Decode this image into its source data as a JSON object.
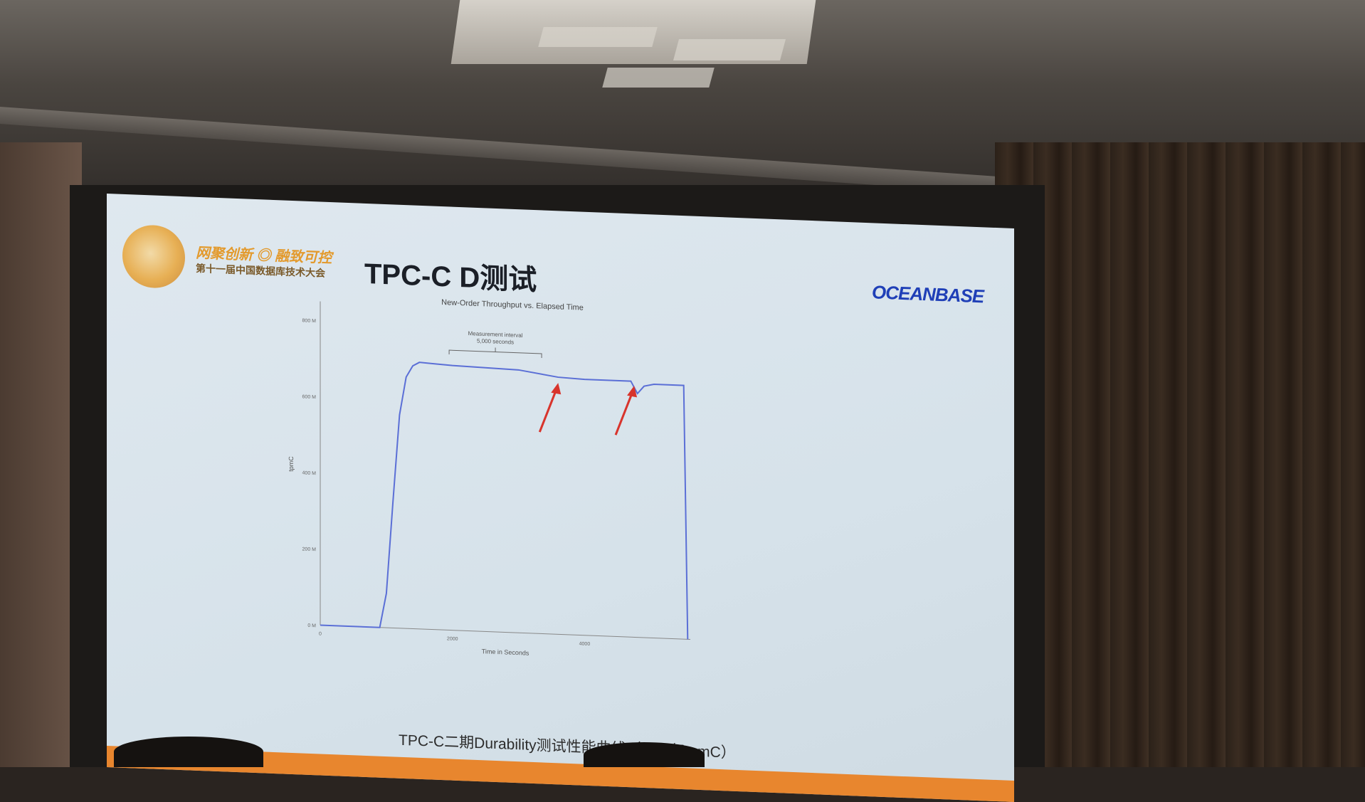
{
  "slide": {
    "logo_line1": "网聚创新 ◎ 融致可控",
    "logo_line2": "第十一届中国数据库技术大会",
    "title": "TPC-C D测试",
    "brand": "OCEANBASE",
    "caption": "TPC-C二期Durability测试性能曲线（7.07亿tpmC）"
  },
  "colors": {
    "line": "#5b6fd6",
    "arrow": "#d8342c",
    "brand": "#1f3fb7",
    "accent_bar": "#e8862e"
  },
  "chart_data": {
    "type": "line",
    "title": "New-Order Throughput vs. Elapsed Time",
    "xlabel": "Time in Seconds",
    "ylabel": "tpmC",
    "x_tick_labels": [
      "0",
      "2000",
      "4000"
    ],
    "y_tick_labels": [
      "0 M",
      "200 M",
      "400 M",
      "600 M",
      "800 M"
    ],
    "xlim": [
      0,
      5600
    ],
    "ylim": [
      0,
      850
    ],
    "annotation": {
      "label_line1": "Measurement interval",
      "label_line2": "5,000 seconds",
      "x_range": [
        1950,
        3350
      ]
    },
    "series": [
      {
        "x": [
          0,
          900,
          1000,
          1100,
          1200,
          1300,
          1400,
          1500,
          1700,
          2000,
          3000,
          3600,
          4000,
          4700,
          4800,
          4900,
          5050,
          5500,
          5560
        ],
        "y": [
          0,
          0,
          90,
          330,
          560,
          660,
          690,
          700,
          698,
          695,
          690,
          675,
          672,
          672,
          640,
          660,
          666,
          666,
          0
        ]
      }
    ],
    "arrows_at_x": [
      3600,
      4750
    ]
  }
}
